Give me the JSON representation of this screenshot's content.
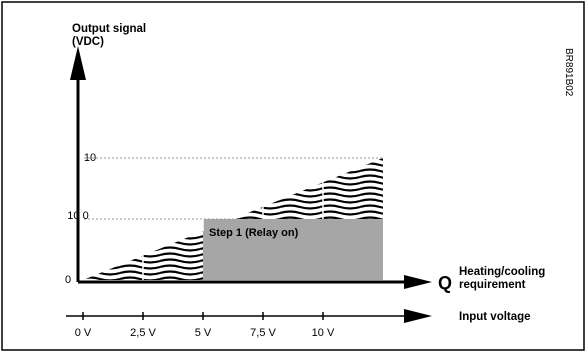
{
  "chart_data": {
    "type": "area",
    "y_axis_label_line1": "Output signal",
    "y_axis_label_line2": "(VDC)",
    "x_axis_label_q": "Q",
    "x_axis_label_line1": "Heating/cooling",
    "x_axis_label_line2": "requirement",
    "input_axis_label": "Input voltage",
    "figure_code": "BR891B02",
    "y_tick_labels": [
      "0",
      "10 0",
      "10"
    ],
    "input_ticks": [
      "0 V",
      "2,5 V",
      "5 V",
      "7,5 V",
      "10 V"
    ],
    "input_values": [
      0,
      2.5,
      5,
      7.5,
      10
    ],
    "step_label": "Step 1 (Relay on)",
    "step_start_v": 5,
    "step_end_v": 12.5,
    "step_level_vdc": 10,
    "ramp_start_v": 0,
    "ramp_end_v": 12.5,
    "ramp_end_vdc": 20,
    "xlim": [
      0,
      12.5
    ],
    "ylim": [
      0,
      20
    ],
    "grid": true,
    "legend": "none"
  },
  "colors": {
    "step_fill": "#a6a6a6",
    "hatch": "#000000",
    "axes": "#000000",
    "grid": "#999999"
  }
}
